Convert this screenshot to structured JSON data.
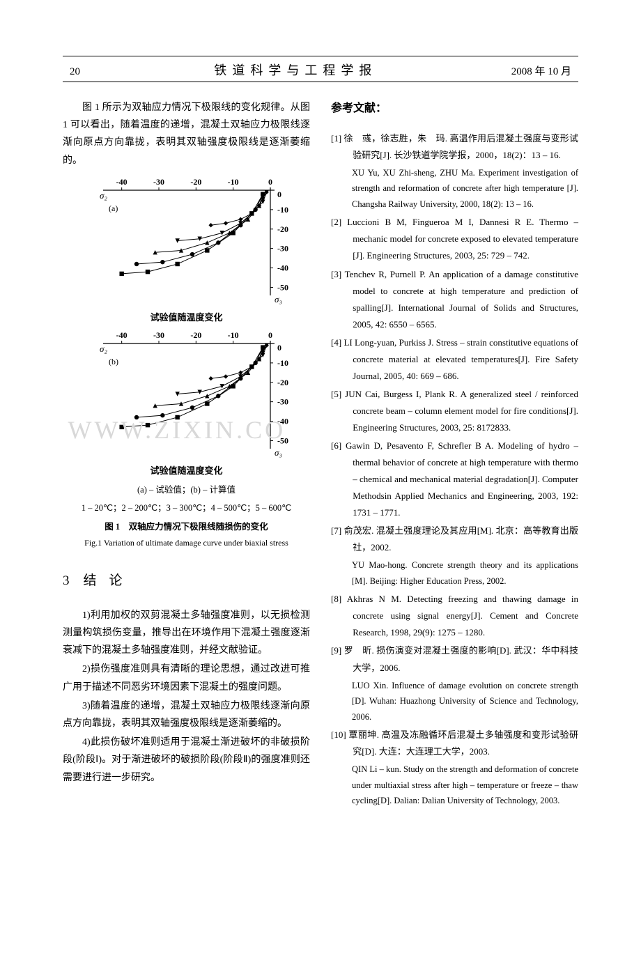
{
  "header": {
    "page_number": "20",
    "journal_title": "铁道科学与工程学报",
    "date": "2008 年 10 月"
  },
  "left_column": {
    "intro_para": "图 1 所示为双轴应力情况下极限线的变化规律。从图 1 可以看出，随着温度的递增，混凝土双轴应力极限线逐渐向原点方向靠拢，表明其双轴强度极限线是逐渐萎缩的。",
    "chart": {
      "type": "scatter-line",
      "panels": [
        "a",
        "b"
      ],
      "x_axis_label": "σ₂",
      "y_axis_label": "σ₃",
      "x_ticks": [
        -40,
        -30,
        -20,
        -10,
        0
      ],
      "y_ticks": [
        0,
        -10,
        -20,
        -30,
        -40,
        -50
      ],
      "xlim": [
        -45,
        2
      ],
      "ylim": [
        -52,
        2
      ],
      "x_label_inside": "试验值随温度变化",
      "series_markers": [
        "square",
        "circle",
        "triangle-up",
        "triangle-down",
        "diamond"
      ],
      "marker_color": "#000000",
      "line_color": "#000000",
      "axis_color": "#000000",
      "background_color": "#ffffff",
      "series_a": {
        "1": [
          [
            -2,
            -2
          ],
          [
            -5,
            -12
          ],
          [
            -10,
            -22
          ],
          [
            -17,
            -31
          ],
          [
            -25,
            -38
          ],
          [
            -33,
            -42
          ],
          [
            -40,
            -43
          ]
        ],
        "2": [
          [
            -2,
            -2
          ],
          [
            -4,
            -10
          ],
          [
            -8,
            -18
          ],
          [
            -14,
            -27
          ],
          [
            -21,
            -33
          ],
          [
            -29,
            -37
          ],
          [
            -36,
            -38
          ]
        ],
        "3": [
          [
            -2,
            -2
          ],
          [
            -3,
            -8
          ],
          [
            -6,
            -15
          ],
          [
            -11,
            -22
          ],
          [
            -17,
            -27
          ],
          [
            -24,
            -31
          ],
          [
            -31,
            -32
          ]
        ],
        "4": [
          [
            -1,
            -1
          ],
          [
            -2,
            -6
          ],
          [
            -5,
            -12
          ],
          [
            -8,
            -17
          ],
          [
            -13,
            -22
          ],
          [
            -19,
            -25
          ],
          [
            -25,
            -26
          ]
        ],
        "5": [
          [
            -1,
            -1
          ],
          [
            -2,
            -4
          ],
          [
            -3,
            -8
          ],
          [
            -5,
            -12
          ],
          [
            -8,
            -15
          ],
          [
            -12,
            -17
          ],
          [
            -16,
            -18
          ]
        ]
      },
      "series_b": {
        "1": [
          [
            -2,
            -2
          ],
          [
            -5,
            -12
          ],
          [
            -10,
            -22
          ],
          [
            -17,
            -31
          ],
          [
            -25,
            -38
          ],
          [
            -33,
            -42
          ],
          [
            -40,
            -43
          ]
        ],
        "2": [
          [
            -2,
            -2
          ],
          [
            -4,
            -10
          ],
          [
            -8,
            -18
          ],
          [
            -14,
            -27
          ],
          [
            -21,
            -33
          ],
          [
            -29,
            -37
          ],
          [
            -36,
            -38
          ]
        ],
        "3": [
          [
            -2,
            -2
          ],
          [
            -3,
            -8
          ],
          [
            -6,
            -15
          ],
          [
            -11,
            -22
          ],
          [
            -17,
            -27
          ],
          [
            -24,
            -31
          ],
          [
            -31,
            -32
          ]
        ],
        "4": [
          [
            -1,
            -1
          ],
          [
            -2,
            -6
          ],
          [
            -5,
            -12
          ],
          [
            -8,
            -17
          ],
          [
            -13,
            -22
          ],
          [
            -19,
            -25
          ],
          [
            -25,
            -26
          ]
        ],
        "5": [
          [
            -1,
            -1
          ],
          [
            -2,
            -4
          ],
          [
            -3,
            -8
          ],
          [
            -5,
            -12
          ],
          [
            -8,
            -15
          ],
          [
            -12,
            -17
          ],
          [
            -16,
            -18
          ]
        ]
      },
      "sub_caption": "(a) – 试验值；(b) – 计算值",
      "legend_line": "1 – 20℃；2 – 200℃；3 – 300℃；4 – 500℃；5 – 600℃",
      "caption_zh": "图 1　双轴应力情况下极限线随损伤的变化",
      "caption_en": "Fig.1 Variation of ultimate damage curve under biaxial stress"
    },
    "section": {
      "number": "3",
      "title": "结论",
      "items": [
        "1)利用加权的双剪混凝土多轴强度准则，以无损检测测量构筑损伤变量，推导出在环境作用下混凝土强度逐渐衰减下的混凝土多轴强度准则，并经文献验证。",
        "2)损伤强度准则具有清晰的理论思想，通过改进可推广用于描述不同恶劣环境因素下混凝土的强度问题。",
        "3)随着温度的递增，混凝土双轴应力极限线逐渐向原点方向靠拢，表明其双轴强度极限线是逐渐萎缩的。",
        "4)此损伤破坏准则适用于混凝土渐进破坏的非破损阶段(阶段Ⅰ)。对于渐进破坏的破损阶段(阶段Ⅱ)的强度准则还需要进行进一步研究。"
      ]
    }
  },
  "right_column": {
    "refs_title": "参考文献：",
    "refs": [
      {
        "n": "[1]",
        "zh": "徐　彧，徐志胜，朱　玛. 高温作用后混凝土强度与变形试验研究[J]. 长沙铁道学院学报，2000，18(2)：13 – 16.",
        "en": "XU Yu, XU Zhi-sheng, ZHU Ma. Experiment investigation of strength and reformation of concrete after high temperature [J]. Changsha Railway University, 2000, 18(2): 13 – 16."
      },
      {
        "n": "[2]",
        "zh": "Luccioni B M, Fingueroa M I, Dannesi R E. Thermo – mechanic model for concrete exposed to elevated temperature [J]. Engineering Structures, 2003, 25: 729 – 742."
      },
      {
        "n": "[3]",
        "zh": "Tenchev R, Purnell P. An application of a damage constitutive model to concrete at high temperature and prediction of spalling[J]. International Journal of Solids and Structures, 2005, 42: 6550 – 6565."
      },
      {
        "n": "[4]",
        "zh": "LI Long-yuan, Purkiss J. Stress – strain constitutive equations of concrete material at elevated temperatures[J]. Fire Safety Journal, 2005, 40: 669 – 686."
      },
      {
        "n": "[5]",
        "zh": "JUN Cai, Burgess I, Plank R. A generalized steel / reinforced concrete beam – column element model for fire conditions[J]. Engineering Structures, 2003, 25: 8172833."
      },
      {
        "n": "[6]",
        "zh": "Gawin D, Pesavento F, Schrefler B A. Modeling of hydro – thermal behavior of concrete at high temperature with thermo – chemical and mechanical material degradation[J]. Computer Methodsin Applied Mechanics and Engineering, 2003, 192: 1731 – 1771."
      },
      {
        "n": "[7]",
        "zh": "俞茂宏. 混凝土强度理论及其应用[M]. 北京：高等教育出版社，2002.",
        "en": "YU Mao-hong. Concrete strength theory and its applications [M]. Beijing: Higher Education Press, 2002."
      },
      {
        "n": "[8]",
        "zh": "Akhras N M. Detecting freezing and thawing damage in concrete using signal energy[J]. Cement and Concrete Research, 1998, 29(9): 1275 – 1280."
      },
      {
        "n": "[9]",
        "zh": "罗　昕. 损伤演变对混凝土强度的影响[D]. 武汉：华中科技大学，2006.",
        "en": "LUO Xin. Influence of damage evolution on concrete strength [D]. Wuhan: Huazhong University of Science and Technology, 2006."
      },
      {
        "n": "[10]",
        "zh": "覃丽坤. 高温及冻融循环后混凝土多轴强度和变形试验研究[D]. 大连：大连理工大学，2003.",
        "en": "QIN Li – kun. Study on the strength and deformation of concrete under multiaxial stress after high – temperature or freeze – thaw cycling[D]. Dalian: Dalian University of Technology, 2003."
      }
    ]
  },
  "watermark": "WWW.ZIXIN.CO"
}
